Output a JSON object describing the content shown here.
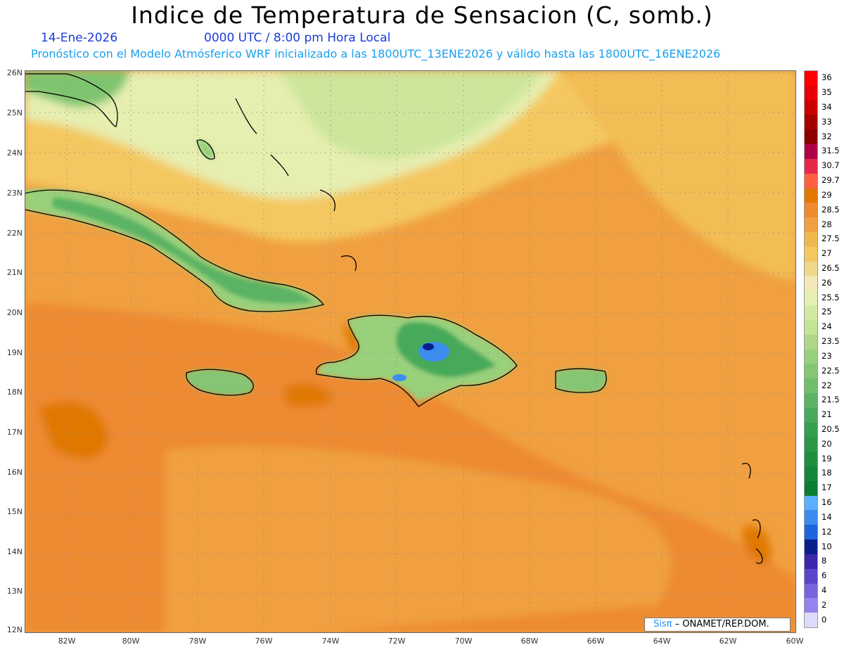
{
  "title": "Indice de Temperatura de Sensacion (C, somb.)",
  "date": "14-Ene-2026",
  "time": "0000 UTC / 8:00 pm Hora Local",
  "model_info": "Pronóstico con el Modelo Atmósferico WRF inicializado a las 1800UTC_13ENE2026 y válido hasta las  1800UTC_16ENE2026",
  "credit": {
    "logo": "Sisπ",
    "text": "– ONAMET/REP.DOM."
  },
  "lat_labels": [
    "26N",
    "25N",
    "24N",
    "23N",
    "22N",
    "21N",
    "20N",
    "19N",
    "18N",
    "17N",
    "16N",
    "15N",
    "14N",
    "13N",
    "12N"
  ],
  "lon_labels": [
    "82W",
    "80W",
    "78W",
    "76W",
    "74W",
    "72W",
    "70W",
    "68W",
    "66W",
    "64W",
    "62W",
    "60W"
  ],
  "legend": [
    {
      "label": "36",
      "color": "#ff0000"
    },
    {
      "label": "35",
      "color": "#e8000a"
    },
    {
      "label": "34",
      "color": "#cc0000"
    },
    {
      "label": "33",
      "color": "#a50000"
    },
    {
      "label": "32",
      "color": "#8c0000"
    },
    {
      "label": "31.5",
      "color": "#b0004a"
    },
    {
      "label": "30.7",
      "color": "#e8284a"
    },
    {
      "label": "29.7",
      "color": "#ff6040"
    },
    {
      "label": "29",
      "color": "#e07800"
    },
    {
      "label": "28.5",
      "color": "#ee8a30"
    },
    {
      "label": "28",
      "color": "#f0a040"
    },
    {
      "label": "27.5",
      "color": "#f2b850"
    },
    {
      "label": "27",
      "color": "#f4c860"
    },
    {
      "label": "26.5",
      "color": "#f0d88a"
    },
    {
      "label": "26",
      "color": "#f2e8b8"
    },
    {
      "label": "25.5",
      "color": "#e6eeb0"
    },
    {
      "label": "25",
      "color": "#d2eaa0"
    },
    {
      "label": "24",
      "color": "#c2e494"
    },
    {
      "label": "23.5",
      "color": "#aed888"
    },
    {
      "label": "23",
      "color": "#98d07c"
    },
    {
      "label": "22.5",
      "color": "#84c674"
    },
    {
      "label": "22",
      "color": "#6ebe6c"
    },
    {
      "label": "21.5",
      "color": "#5ab464"
    },
    {
      "label": "21",
      "color": "#46aa5a"
    },
    {
      "label": "20.5",
      "color": "#32a050"
    },
    {
      "label": "20",
      "color": "#2a9848"
    },
    {
      "label": "19",
      "color": "#1e9040"
    },
    {
      "label": "18",
      "color": "#148838"
    },
    {
      "label": "17",
      "color": "#0a7e30"
    },
    {
      "label": "16",
      "color": "#5ab0ff"
    },
    {
      "label": "14",
      "color": "#3c8cf0"
    },
    {
      "label": "12",
      "color": "#1e64dc"
    },
    {
      "label": "10",
      "color": "#0a1e8c"
    },
    {
      "label": "8",
      "color": "#3c28aa"
    },
    {
      "label": "6",
      "color": "#5a46c8"
    },
    {
      "label": "4",
      "color": "#7864dc"
    },
    {
      "label": "2",
      "color": "#9682f0"
    },
    {
      "label": "0",
      "color": "#dcdcfa"
    }
  ]
}
